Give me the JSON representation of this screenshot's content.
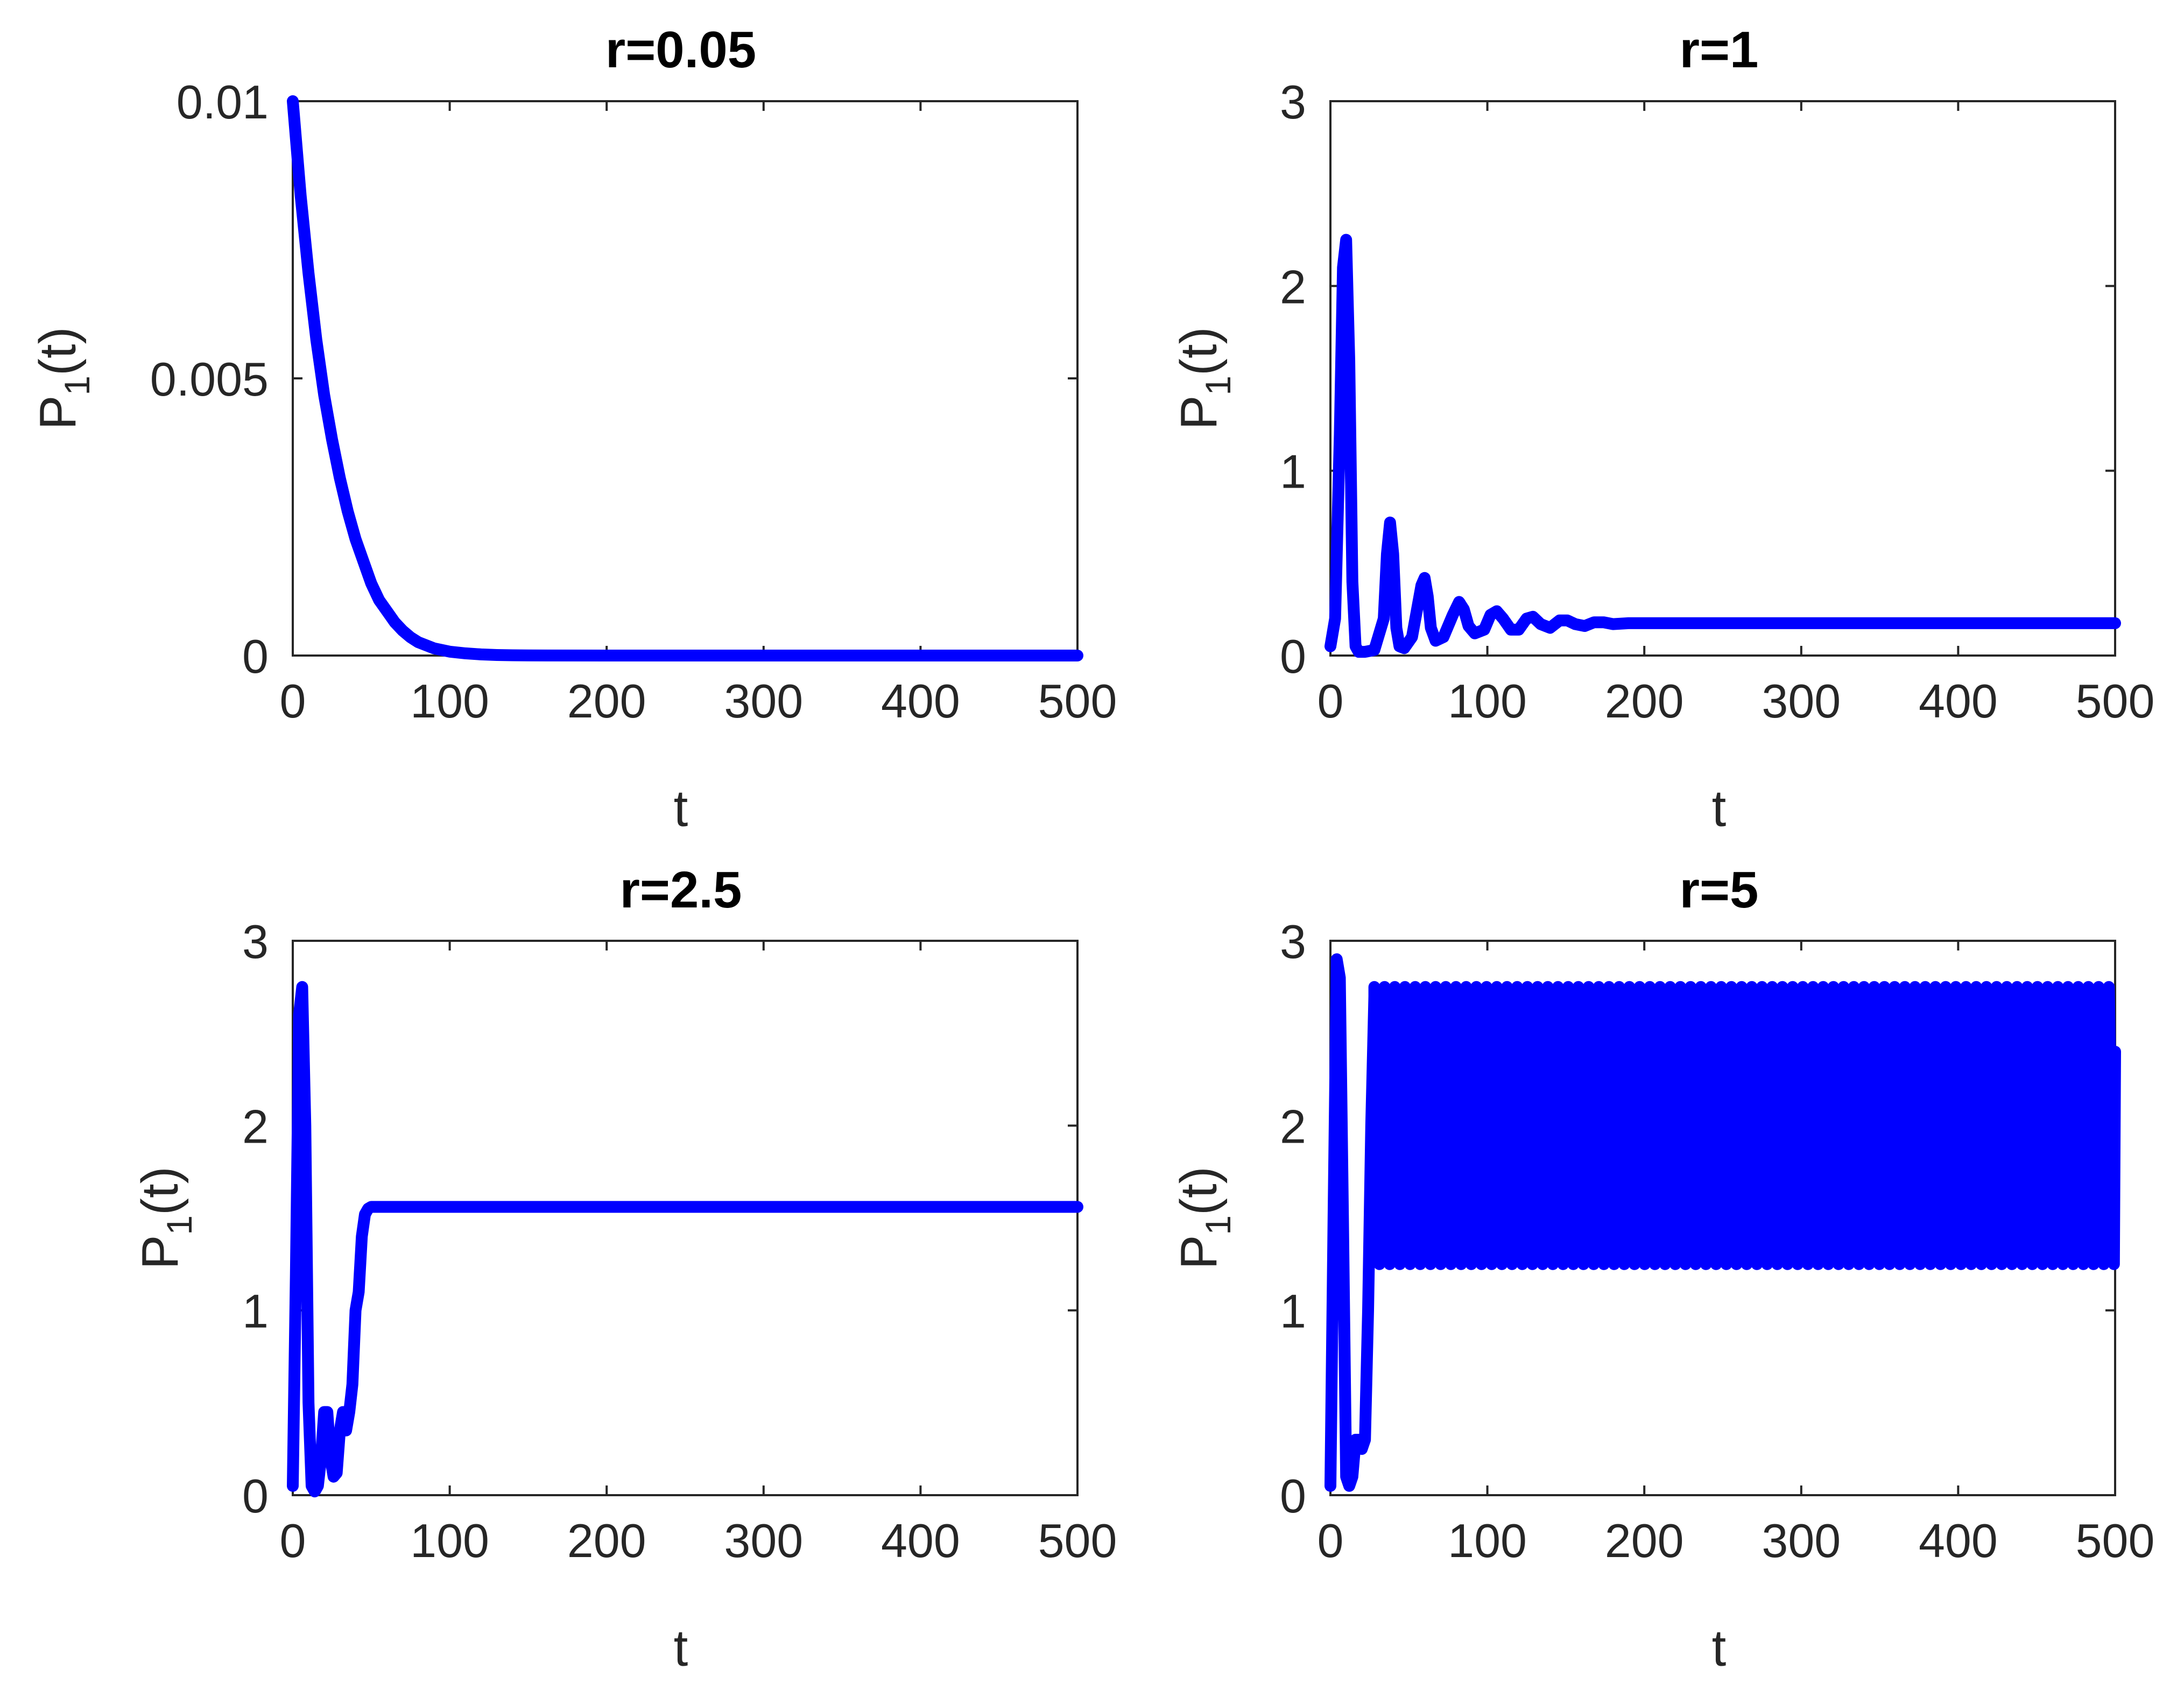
{
  "series_color": "#0000ff",
  "chart_data": [
    {
      "type": "line",
      "title": "r=0.05",
      "xlabel": "t",
      "ylabel": {
        "main": "P",
        "subscript": "1",
        "suffix": "(t)"
      },
      "xlim": [
        0,
        500
      ],
      "ylim": [
        0,
        0.01
      ],
      "xticks": [
        0,
        100,
        200,
        300,
        400,
        500
      ],
      "yticks": [
        0,
        0.005,
        0.01
      ],
      "xticklabels": [
        "0",
        "100",
        "200",
        "300",
        "400",
        "500"
      ],
      "yticklabels": [
        "0",
        "0.005",
        "0.01"
      ],
      "grid": false,
      "series": [
        {
          "x": [
            0,
            5,
            10,
            15,
            20,
            25,
            30,
            35,
            40,
            45,
            50,
            55,
            60,
            65,
            70,
            75,
            80,
            90,
            100,
            110,
            120,
            130,
            140,
            150,
            200,
            300,
            400,
            500
          ],
          "y": [
            0.01,
            0.0083,
            0.0069,
            0.0057,
            0.0047,
            0.0039,
            0.0032,
            0.0026,
            0.0021,
            0.0017,
            0.0013,
            0.001,
            0.0008,
            0.0006,
            0.00045,
            0.00033,
            0.00024,
            0.00013,
            7e-05,
            4e-05,
            2e-05,
            1e-05,
            5e-06,
            2e-06,
            0,
            0,
            0,
            0
          ]
        }
      ]
    },
    {
      "type": "line",
      "title": "r=1",
      "xlabel": "t",
      "ylabel": {
        "main": "P",
        "subscript": "1",
        "suffix": "(t)"
      },
      "xlim": [
        0,
        500
      ],
      "ylim": [
        0,
        3
      ],
      "xticks": [
        0,
        100,
        200,
        300,
        400,
        500
      ],
      "yticks": [
        0,
        1,
        2,
        3
      ],
      "xticklabels": [
        "0",
        "100",
        "200",
        "300",
        "400",
        "500"
      ],
      "yticklabels": [
        "0",
        "1",
        "2",
        "3"
      ],
      "grid": false,
      "series": [
        {
          "x": [
            0,
            3,
            6,
            8,
            10,
            12,
            14,
            16,
            18,
            22,
            28,
            34,
            36,
            38,
            40,
            42,
            44,
            47,
            52,
            58,
            60,
            62,
            64,
            67,
            72,
            78,
            82,
            85,
            88,
            92,
            98,
            102,
            106,
            110,
            115,
            120,
            125,
            129,
            134,
            140,
            146,
            151,
            156,
            162,
            168,
            174,
            180,
            190,
            200,
            250,
            300,
            400,
            500
          ],
          "y": [
            0.05,
            0.2,
            1.2,
            2.1,
            2.25,
            1.6,
            0.4,
            0.05,
            0.02,
            0.02,
            0.03,
            0.2,
            0.55,
            0.72,
            0.55,
            0.15,
            0.05,
            0.04,
            0.1,
            0.38,
            0.42,
            0.32,
            0.15,
            0.08,
            0.1,
            0.22,
            0.29,
            0.25,
            0.16,
            0.12,
            0.14,
            0.22,
            0.24,
            0.2,
            0.14,
            0.14,
            0.2,
            0.21,
            0.17,
            0.15,
            0.19,
            0.19,
            0.17,
            0.16,
            0.18,
            0.18,
            0.17,
            0.175,
            0.175,
            0.175,
            0.175,
            0.175,
            0.175
          ]
        }
      ]
    },
    {
      "type": "line",
      "title": "r=2.5",
      "xlabel": "t",
      "ylabel": {
        "main": "P",
        "subscript": "1",
        "suffix": "(t)"
      },
      "xlim": [
        0,
        500
      ],
      "ylim": [
        0,
        3
      ],
      "xticks": [
        0,
        100,
        200,
        300,
        400,
        500
      ],
      "yticks": [
        0,
        1,
        2,
        3
      ],
      "xticklabels": [
        "0",
        "100",
        "200",
        "300",
        "400",
        "500"
      ],
      "yticklabels": [
        "0",
        "1",
        "2",
        "3"
      ],
      "grid": false,
      "series": [
        {
          "x": [
            0,
            2,
            4,
            6,
            8,
            10,
            12,
            14,
            16,
            18,
            20,
            22,
            24,
            26,
            28,
            30,
            32,
            34,
            36,
            38,
            40,
            42,
            44,
            46,
            48,
            50,
            55,
            60,
            100,
            200,
            300,
            400,
            500
          ],
          "y": [
            0.05,
            1.2,
            2.6,
            2.75,
            2.0,
            0.5,
            0.05,
            0.02,
            0.05,
            0.2,
            0.45,
            0.45,
            0.2,
            0.1,
            0.12,
            0.35,
            0.45,
            0.35,
            0.45,
            0.6,
            1.0,
            1.1,
            1.4,
            1.52,
            1.55,
            1.56,
            1.56,
            1.56,
            1.56,
            1.56,
            1.56,
            1.56,
            1.56
          ]
        }
      ]
    },
    {
      "type": "line",
      "title": "r=5",
      "xlabel": "t",
      "ylabel": {
        "main": "P",
        "subscript": "1",
        "suffix": "(t)"
      },
      "xlim": [
        0,
        500
      ],
      "ylim": [
        0,
        3
      ],
      "xticks": [
        0,
        100,
        200,
        300,
        400,
        500
      ],
      "yticks": [
        0,
        1,
        2,
        3
      ],
      "xticklabels": [
        "0",
        "100",
        "200",
        "300",
        "400",
        "500"
      ],
      "yticklabels": [
        "0",
        "1",
        "2",
        "3"
      ],
      "grid": false,
      "series": [
        {
          "x": [
            0,
            2,
            4,
            6,
            8,
            10,
            12,
            14,
            16,
            18,
            20,
            22,
            24,
            26,
            28
          ],
          "y": [
            0.05,
            1.5,
            2.9,
            2.8,
            1.5,
            0.1,
            0.05,
            0.1,
            0.3,
            0.3,
            0.25,
            0.3,
            1.0,
            2.0,
            2.7
          ],
          "oscillation": {
            "t_start": 28,
            "t_end": 500,
            "period": 6.5,
            "y_max": 2.75,
            "y_min": 1.25,
            "y_end": 2.4
          }
        }
      ]
    }
  ]
}
